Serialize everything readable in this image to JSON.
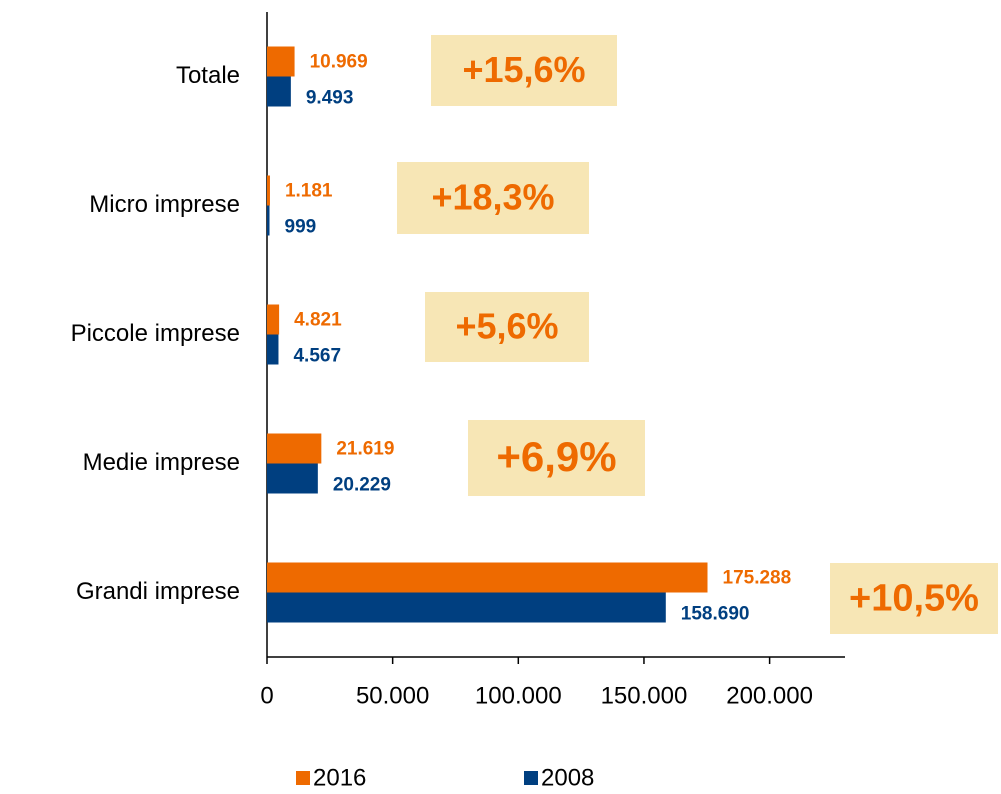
{
  "chart_data": {
    "type": "barh",
    "categories": [
      "Totale",
      "Micro imprese",
      "Piccole imprese",
      "Medie imprese",
      "Grandi imprese"
    ],
    "series": [
      {
        "name": "2016",
        "color": "#ee6a00",
        "values": [
          10969,
          1181,
          4821,
          21619,
          175288
        ],
        "value_labels": [
          "10.969",
          "1.181",
          "4.821",
          "21.619",
          "175.288"
        ]
      },
      {
        "name": "2008",
        "color": "#003f80",
        "values": [
          9493,
          999,
          4567,
          20229,
          158690
        ],
        "value_labels": [
          "9.493",
          "999",
          "4.567",
          "20.229",
          "158.690"
        ]
      }
    ],
    "annotations": [
      "+15,6%",
      "+18,3%",
      "+5,6%",
      "+6,9%",
      "+10,5%"
    ],
    "annotation_color": "#f7e6b5",
    "xlim": [
      0,
      230000
    ],
    "xticks": [
      0,
      {
        "value": 50000,
        "label": "50.000"
      },
      {
        "value": 100000,
        "label": "100.000"
      },
      {
        "value": 150000,
        "label": "150.000"
      },
      {
        "value": 200000,
        "label": "200.000"
      }
    ],
    "legend": "bottom"
  }
}
